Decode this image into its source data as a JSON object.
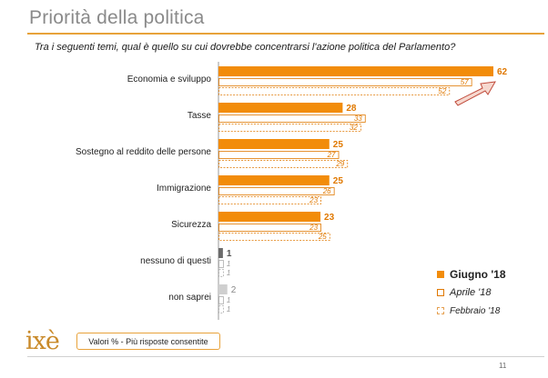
{
  "title": "Priorità della politica",
  "question": "Tra i seguenti temi, qual è quello su cui dovrebbe concentrarsi l'azione politica del Parlamento?",
  "note": "Valori % - Più risposte consentite",
  "logo_text": "ixè",
  "page_number": "11",
  "colors": {
    "accent": "#f28c0a",
    "accent_dark": "#e07800",
    "title": "#8a8a8a",
    "none_bar": "#6b6b6b",
    "dontknow_bar": "#cfcfcf"
  },
  "chart_data": {
    "type": "bar",
    "orientation": "horizontal",
    "categories": [
      "Economia e sviluppo",
      "Tasse",
      "Sostegno al reddito delle persone",
      "Immigrazione",
      "Sicurezza",
      "nessuno di questi",
      "non saprei"
    ],
    "series": [
      {
        "name": "Giugno '18",
        "values": [
          62,
          28,
          25,
          25,
          23,
          1,
          2
        ]
      },
      {
        "name": "Aprile '18",
        "values": [
          57,
          33,
          27,
          26,
          23,
          1,
          1
        ]
      },
      {
        "name": "Febbraio '18",
        "values": [
          52,
          32,
          29,
          23,
          25,
          1,
          1
        ]
      }
    ],
    "xlim": [
      0,
      62
    ],
    "legend_position": "bottom-right",
    "grid": false
  }
}
